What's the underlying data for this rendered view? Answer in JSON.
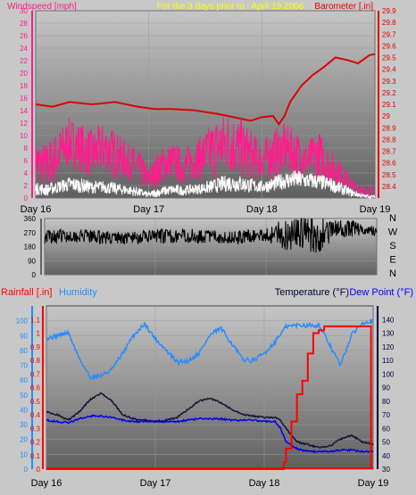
{
  "chart_data": [
    {
      "id": "wind_baro",
      "type": "line",
      "title": "For the 3 days prior to : April 19 2006",
      "left_axis_label": "Windspeed [mph]",
      "right_axis_label": "Barometer [.in]",
      "left_ylim": [
        0,
        30
      ],
      "left_ticks": [
        0,
        2,
        4,
        6,
        8,
        10,
        12,
        14,
        16,
        18,
        20,
        22,
        24,
        26,
        28,
        30
      ],
      "right_ylim": [
        28.3,
        29.9
      ],
      "right_ticks": [
        "28.4",
        "28.5",
        "28.6",
        "28.7",
        "28.8",
        "28.9",
        "29",
        "29.1",
        "29.2",
        "29.3",
        "29.4",
        "29.5",
        "29.6",
        "29.7",
        "29.8",
        "29.9"
      ],
      "xlim": [
        0,
        3
      ],
      "x_ticks": [
        {
          "x": 0,
          "label": "Day 16"
        },
        {
          "x": 1,
          "label": "Day 17"
        },
        {
          "x": 2,
          "label": "Day 18"
        },
        {
          "x": 3,
          "label": "Day 19"
        }
      ],
      "colors": {
        "wind_gust": "#ff1c8c",
        "wind_avg": "#ffffff",
        "barometer": "#e00000",
        "left_axis": "#ff1c8c",
        "right_axis": "#e00000",
        "title": "#ffff00"
      },
      "series": [
        {
          "key": "barometer",
          "axis": "right",
          "x": [
            0,
            0.15,
            0.3,
            0.5,
            0.7,
            0.9,
            1.05,
            1.2,
            1.4,
            1.6,
            1.8,
            1.9,
            2.0,
            2.1,
            2.15,
            2.2,
            2.25,
            2.35,
            2.45,
            2.55,
            2.65,
            2.75,
            2.85,
            2.95,
            3.0
          ],
          "y": [
            29.1,
            29.08,
            29.12,
            29.1,
            29.12,
            29.08,
            29.06,
            29.06,
            29.05,
            29.02,
            28.98,
            28.96,
            28.99,
            29.0,
            28.93,
            29.0,
            29.12,
            29.26,
            29.35,
            29.42,
            29.5,
            29.48,
            29.45,
            29.52,
            29.53
          ]
        },
        {
          "key": "wind_gust",
          "axis": "left",
          "x": [
            0,
            0.1,
            0.2,
            0.3,
            0.4,
            0.5,
            0.6,
            0.7,
            0.8,
            0.9,
            1.0,
            1.1,
            1.2,
            1.3,
            1.4,
            1.5,
            1.6,
            1.7,
            1.8,
            1.9,
            2.0,
            2.1,
            2.2,
            2.3,
            2.4,
            2.5,
            2.6,
            2.7,
            2.8,
            2.9,
            3.0
          ],
          "y": [
            6,
            5,
            7,
            9,
            8,
            7,
            8,
            7,
            6,
            5,
            3,
            5,
            6,
            5,
            6,
            7,
            8,
            9,
            8,
            7,
            6,
            7,
            8,
            7,
            6,
            7,
            5,
            4,
            2,
            1,
            1
          ],
          "spread": [
            3,
            4,
            4,
            4,
            4,
            4,
            4,
            4,
            3,
            3,
            2,
            3,
            3,
            3,
            3,
            4,
            5,
            5,
            5,
            4,
            3,
            4,
            4,
            4,
            3,
            4,
            3,
            2,
            1,
            1,
            1
          ]
        },
        {
          "key": "wind_avg",
          "axis": "left",
          "x": [
            0,
            0.1,
            0.2,
            0.3,
            0.4,
            0.5,
            0.6,
            0.7,
            0.8,
            0.9,
            1.0,
            1.1,
            1.2,
            1.3,
            1.4,
            1.5,
            1.6,
            1.7,
            1.8,
            1.9,
            2.0,
            2.1,
            2.2,
            2.3,
            2.4,
            2.5,
            2.6,
            2.7,
            2.8,
            2.9,
            3.0
          ],
          "y": [
            1.5,
            1.3,
            1.8,
            2.2,
            2.0,
            1.7,
            1.8,
            1.5,
            1.3,
            1.0,
            0.5,
            1.0,
            1.3,
            1.2,
            1.4,
            1.6,
            2.0,
            2.4,
            2.3,
            2.0,
            1.8,
            2.2,
            2.8,
            3.0,
            2.8,
            2.6,
            2.2,
            1.5,
            0.8,
            0.3,
            0.2
          ],
          "spread": [
            1,
            1,
            1,
            1.2,
            1.2,
            1,
            1,
            1,
            0.8,
            0.8,
            0.5,
            0.8,
            0.8,
            0.8,
            0.8,
            1,
            1.2,
            1.4,
            1.4,
            1.2,
            1,
            1.2,
            1.4,
            1.5,
            1.4,
            1.3,
            1.2,
            1,
            0.6,
            0.3,
            0.2
          ]
        }
      ]
    },
    {
      "id": "wind_dir",
      "type": "line",
      "left_ylim": [
        0,
        360
      ],
      "left_ticks": [
        0,
        90,
        180,
        270,
        360
      ],
      "compass_labels": [
        "N",
        "W",
        "S",
        "E",
        "N"
      ],
      "xlim": [
        0,
        3
      ],
      "colors": {
        "direction": "#000000"
      },
      "series": [
        {
          "key": "direction",
          "x": [
            0,
            0.25,
            0.5,
            0.75,
            1.0,
            1.25,
            1.5,
            1.75,
            2.0,
            2.1,
            2.2,
            2.3,
            2.4,
            2.5,
            2.6,
            2.7,
            2.8,
            2.9,
            3.0
          ],
          "y": [
            245,
            250,
            240,
            235,
            245,
            250,
            245,
            240,
            255,
            255,
            260,
            280,
            265,
            255,
            290,
            285,
            300,
            290,
            275
          ],
          "spread": [
            45,
            40,
            45,
            40,
            45,
            45,
            45,
            45,
            40,
            90,
            110,
            100,
            120,
            120,
            60,
            70,
            50,
            40,
            30
          ]
        }
      ]
    },
    {
      "id": "rain_temp",
      "type": "line",
      "rain_label": "Rainfall [.in]",
      "humidity_label": "Humidity",
      "temp_label": "Temperature (°F)",
      "dewpoint_label": "Dew Point (°F)",
      "rain_ylim": [
        0,
        1.2
      ],
      "rain_ticks": [
        "0",
        "0.1",
        "0.2",
        "0.3",
        "0.4",
        "0.5",
        "0.6",
        "0.7",
        "0.8",
        "0.9",
        "1",
        "1.1"
      ],
      "humidity_ylim": [
        0,
        110
      ],
      "humidity_ticks": [
        0,
        10,
        20,
        30,
        40,
        50,
        60,
        70,
        80,
        90,
        100
      ],
      "temp_ylim": [
        30,
        150
      ],
      "temp_ticks": [
        30,
        40,
        50,
        60,
        70,
        80,
        90,
        100,
        110,
        120,
        130,
        140
      ],
      "xlim": [
        0,
        3
      ],
      "x_ticks": [
        {
          "x": 0,
          "label": "Day 16"
        },
        {
          "x": 1,
          "label": "Day 17"
        },
        {
          "x": 2,
          "label": "Day 18"
        },
        {
          "x": 3,
          "label": "Day 19"
        }
      ],
      "colors": {
        "rain": "#ff0000",
        "humidity": "#2a8cff",
        "temperature": "#141438",
        "dewpoint": "#0000ee",
        "rain_axis": "#ff0000",
        "humidity_axis": "#1e90ff",
        "temp_axis": "#000033",
        "dewpoint_axis": "#0000ff"
      },
      "series": [
        {
          "key": "rainfall",
          "axis": "rain",
          "x": [
            0,
            2.15,
            2.18,
            2.2,
            2.25,
            2.3,
            2.35,
            2.4,
            2.45,
            2.5,
            2.55,
            2.6,
            2.98
          ],
          "y": [
            0,
            0,
            0.05,
            0.15,
            0.35,
            0.55,
            0.65,
            0.85,
            1.0,
            1.02,
            1.05,
            1.05,
            1.05
          ]
        },
        {
          "key": "humidity",
          "axis": "humidity",
          "x": [
            0,
            0.1,
            0.2,
            0.3,
            0.4,
            0.5,
            0.6,
            0.7,
            0.8,
            0.9,
            1.0,
            1.1,
            1.2,
            1.3,
            1.4,
            1.5,
            1.6,
            1.7,
            1.8,
            1.9,
            2.0,
            2.1,
            2.2,
            2.3,
            2.4,
            2.5,
            2.6,
            2.7,
            2.8,
            2.9,
            3.0
          ],
          "y": [
            88,
            90,
            92,
            75,
            62,
            63,
            67,
            78,
            90,
            98,
            88,
            80,
            72,
            73,
            78,
            90,
            95,
            85,
            74,
            73,
            78,
            86,
            96,
            97,
            97,
            97,
            84,
            70,
            90,
            99,
            100
          ]
        },
        {
          "key": "temperature",
          "axis": "temp",
          "x": [
            0,
            0.1,
            0.2,
            0.3,
            0.4,
            0.5,
            0.6,
            0.7,
            0.8,
            0.9,
            1.0,
            1.1,
            1.2,
            1.3,
            1.4,
            1.5,
            1.6,
            1.7,
            1.8,
            1.9,
            2.0,
            2.1,
            2.15,
            2.2,
            2.3,
            2.4,
            2.5,
            2.6,
            2.7,
            2.8,
            2.9,
            3.0
          ],
          "y": [
            72,
            70,
            66,
            72,
            81,
            86,
            80,
            70,
            67,
            66,
            65,
            66,
            68,
            74,
            80,
            82,
            79,
            74,
            70,
            69,
            68,
            68,
            66,
            60,
            50,
            48,
            46,
            47,
            52,
            55,
            50,
            48
          ]
        },
        {
          "key": "dewpoint",
          "axis": "temp",
          "x": [
            0,
            0.1,
            0.2,
            0.3,
            0.4,
            0.5,
            0.6,
            0.7,
            0.8,
            0.9,
            1.0,
            1.1,
            1.2,
            1.3,
            1.4,
            1.5,
            1.6,
            1.7,
            1.8,
            1.9,
            2.0,
            2.1,
            2.15,
            2.2,
            2.3,
            2.4,
            2.5,
            2.6,
            2.7,
            2.8,
            2.9,
            3.0
          ],
          "y": [
            66,
            65,
            64,
            67,
            69,
            69,
            68,
            66,
            65,
            65,
            65,
            65,
            65,
            66,
            67,
            67,
            67,
            66,
            66,
            66,
            65,
            65,
            60,
            50,
            45,
            43,
            43,
            43,
            44,
            44,
            43,
            43
          ]
        }
      ]
    }
  ]
}
